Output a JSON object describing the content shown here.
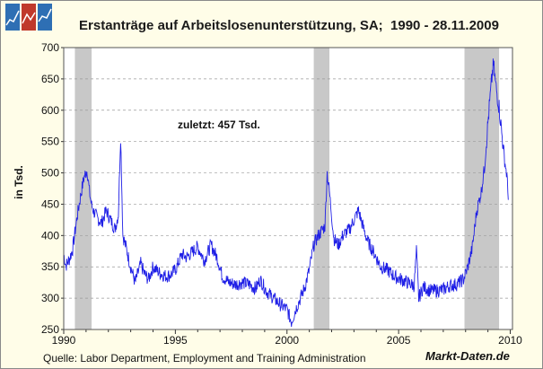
{
  "colors": {
    "series": "#1f1fe6",
    "recession": "#c8c8c8",
    "grid": "#9a9a9a",
    "background": "#ffffff",
    "logo": [
      "#2e6fb4",
      "#c0392b",
      "#2e6fb4"
    ]
  },
  "footer": {
    "source": "Quelle: Labor Department, Employment and Training Administration",
    "brand": "Markt-Daten.de"
  },
  "chart_data": {
    "type": "line",
    "title": "Erstanträge auf Arbeitslosenunterstützung, SA;  1990 - 28.11.2009",
    "xlabel": "",
    "ylabel": "in Tsd.",
    "annotation": "zuletzt: 457 Tsd.",
    "xlim": [
      1990,
      2010.1
    ],
    "ylim": [
      250,
      700
    ],
    "x_ticks": [
      1990,
      1995,
      2000,
      2005,
      2010
    ],
    "y_ticks": [
      250,
      300,
      350,
      400,
      450,
      500,
      550,
      600,
      650,
      700
    ],
    "grid": "horizontal dashed",
    "legend": "none",
    "recessions": [
      [
        1990.5,
        1991.25
      ],
      [
        2001.2,
        2001.9
      ],
      [
        2007.95,
        2009.5
      ]
    ],
    "series": [
      {
        "x": [
          1990.0,
          1990.1,
          1990.25,
          1990.4,
          1990.6,
          1990.75,
          1990.9,
          1991.05,
          1991.15,
          1991.25,
          1991.35,
          1991.5,
          1991.7,
          1991.9,
          1992.1,
          1992.3,
          1992.45,
          1992.55,
          1992.65,
          1992.8,
          1993.0,
          1993.2,
          1993.45,
          1993.6,
          1993.8,
          1994.0,
          1994.3,
          1994.6,
          1994.8,
          1995.0,
          1995.3,
          1995.5,
          1995.7,
          1996.0,
          1996.3,
          1996.6,
          1996.9,
          1997.1,
          1997.4,
          1997.7,
          1998.0,
          1998.3,
          1998.6,
          1998.8,
          1999.1,
          1999.4,
          1999.7,
          2000.0,
          2000.2,
          2000.4,
          2000.6,
          2000.8,
          2001.0,
          2001.2,
          2001.4,
          2001.6,
          2001.7,
          2001.8,
          2001.9,
          2002.1,
          2002.3,
          2002.5,
          2002.8,
          2003.0,
          2003.2,
          2003.4,
          2003.6,
          2003.9,
          2004.2,
          2004.5,
          2004.8,
          2005.1,
          2005.4,
          2005.7,
          2005.8,
          2005.9,
          2006.1,
          2006.4,
          2006.7,
          2007.0,
          2007.3,
          2007.6,
          2007.9,
          2008.1,
          2008.3,
          2008.5,
          2008.7,
          2008.85,
          2009.0,
          2009.1,
          2009.2,
          2009.25,
          2009.35,
          2009.5,
          2009.6,
          2009.75,
          2009.85,
          2009.91
        ],
        "values": [
          370,
          352,
          362,
          378,
          430,
          462,
          492,
          505,
          470,
          448,
          438,
          428,
          420,
          440,
          425,
          410,
          435,
          562,
          400,
          380,
          350,
          325,
          355,
          340,
          330,
          350,
          340,
          335,
          338,
          345,
          370,
          365,
          372,
          382,
          360,
          385,
          362,
          335,
          325,
          322,
          325,
          322,
          315,
          330,
          310,
          300,
          290,
          282,
          262,
          283,
          300,
          318,
          345,
          385,
          400,
          410,
          415,
          500,
          470,
          395,
          385,
          400,
          410,
          425,
          440,
          415,
          392,
          372,
          350,
          345,
          335,
          330,
          325,
          320,
          375,
          300,
          318,
          312,
          312,
          314,
          320,
          322,
          330,
          350,
          380,
          440,
          470,
          510,
          580,
          620,
          660,
          672,
          640,
          605,
          570,
          520,
          495,
          457
        ]
      }
    ]
  }
}
